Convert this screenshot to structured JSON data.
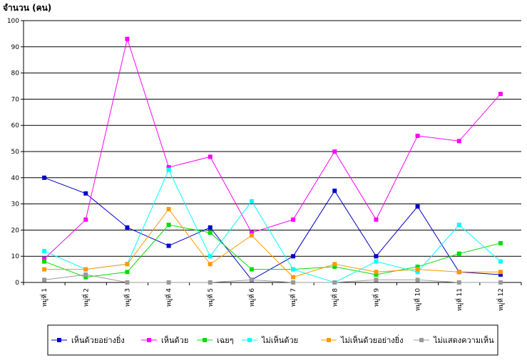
{
  "chart_data": {
    "type": "line",
    "title": "",
    "ylabel": "จำนวน (คน)",
    "xlabel": "",
    "ylim": [
      0,
      100
    ],
    "yticks": [
      0,
      10,
      20,
      30,
      40,
      50,
      60,
      70,
      80,
      90,
      100
    ],
    "grid": true,
    "legend_position": "bottom",
    "categories": [
      "หมู่ที่ 1",
      "หมู่ที่ 2",
      "หมู่ที่ 3",
      "หมู่ที่ 4",
      "หมู่ที่ 5",
      "หมู่ที่ 6",
      "หมู่ที่ 7",
      "หมู่ที่ 8",
      "หมู่ที่ 9",
      "หมู่ที่ 10",
      "หมู่ที่ 11",
      "หมู่ที่ 12"
    ],
    "series": [
      {
        "name": "เห็นด้วยอย่างยิ่ง",
        "color": "#0000CC",
        "values": [
          40,
          34,
          21,
          14,
          21,
          1,
          10,
          35,
          10,
          29,
          4,
          3
        ]
      },
      {
        "name": "เห็นด้วย",
        "color": "#FF00FF",
        "values": [
          9,
          24,
          93,
          44,
          48,
          19,
          24,
          50,
          24,
          56,
          54,
          72
        ]
      },
      {
        "name": "เฉยๆ",
        "color": "#00DD00",
        "values": [
          8,
          2,
          4,
          22,
          19,
          5,
          5,
          6,
          3,
          6,
          11,
          15
        ]
      },
      {
        "name": "ไม่เห็นด้วย",
        "color": "#00FFFF",
        "values": [
          12,
          5,
          7,
          43,
          10,
          31,
          5,
          0,
          8,
          4,
          22,
          8
        ]
      },
      {
        "name": "ไม่เห็นด้วยอย่างยิ่ง",
        "color": "#FF9900",
        "values": [
          5,
          5,
          7,
          28,
          7,
          18,
          2,
          7,
          4,
          5,
          4,
          4
        ]
      },
      {
        "name": "ไม่แสดงความเห็น",
        "color": "#999999",
        "values": [
          1,
          3,
          0,
          0,
          0,
          1,
          0,
          0,
          1,
          1,
          0,
          0
        ]
      }
    ]
  }
}
